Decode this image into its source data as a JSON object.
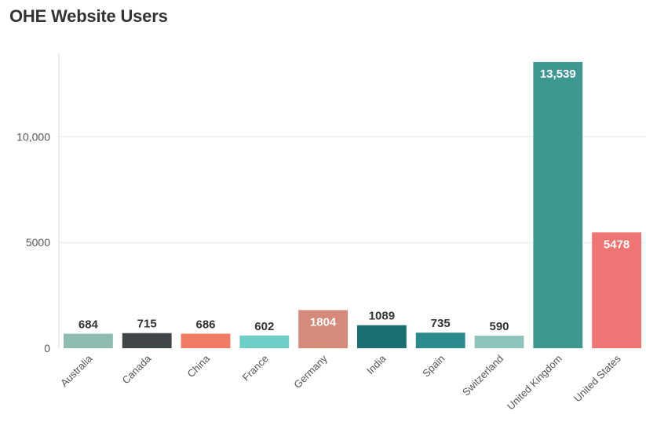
{
  "chart_data": {
    "type": "bar",
    "title": "OHE Website Users",
    "xlabel": "",
    "ylabel": "",
    "categories": [
      "Australia",
      "Canada",
      "China",
      "France",
      "Germany",
      "India",
      "Spain",
      "Switzerland",
      "United Kingdom",
      "United States"
    ],
    "values": [
      684,
      715,
      686,
      602,
      1804,
      1089,
      735,
      590,
      13539,
      5478
    ],
    "value_labels": [
      "684",
      "715",
      "686",
      "602",
      "1804",
      "1089",
      "735",
      "590",
      "13,539",
      "5478"
    ],
    "label_inside": [
      false,
      false,
      false,
      false,
      true,
      false,
      false,
      false,
      true,
      true
    ],
    "colors": [
      "#8fbcb0",
      "#404547",
      "#f07b62",
      "#6ecec8",
      "#d58a7a",
      "#1b6f73",
      "#2a8a8c",
      "#8fc5ba",
      "#3f9792",
      "#ee7574"
    ],
    "yticks": [
      0,
      5000,
      10000
    ],
    "ytick_labels": [
      "0",
      "5000",
      "10,000"
    ],
    "ylim": [
      0,
      14000
    ],
    "grid": true,
    "legend": "none"
  }
}
